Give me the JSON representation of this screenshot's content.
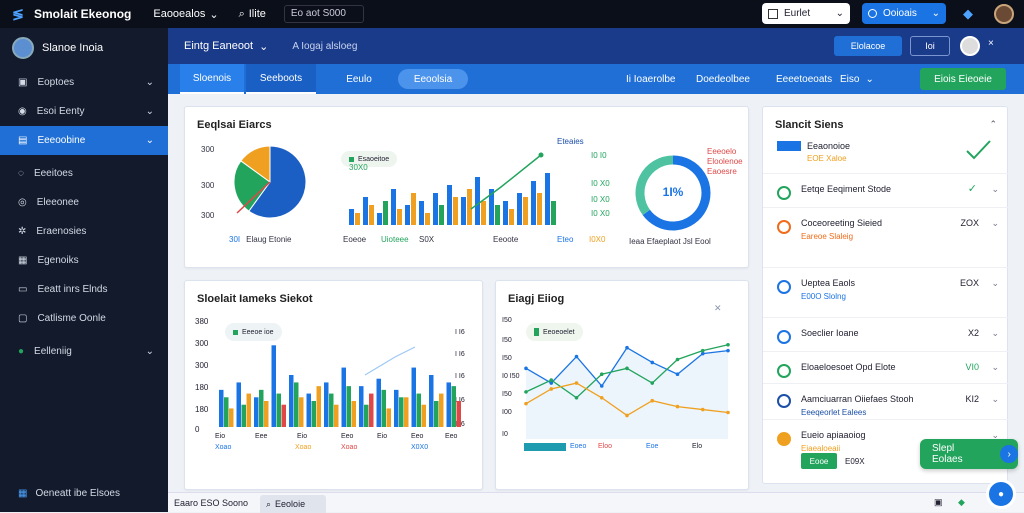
{
  "topbar": {
    "app_title": "Smolait Ekeonog",
    "nav_label": "Eaooealos",
    "search_label": "Ilite",
    "field_value": "Eo aot S000",
    "white_button": "Eurlet",
    "blue_button": "Ooioais",
    "colors": {
      "bg": "#0b0f19",
      "accent": "#1b74e4"
    }
  },
  "sidebar": {
    "user_name": "Slanoe Inoia",
    "items": [
      {
        "label": "Eoptoes",
        "icon": "box-icon",
        "chevron": true,
        "active": false
      },
      {
        "label": "Esoi Eenty",
        "icon": "user-icon",
        "chevron": true,
        "active": false
      },
      {
        "label": "Eeeoobine",
        "icon": "chart-icon",
        "chevron": true,
        "active": true
      },
      {
        "label": "Eeeitoes",
        "icon": "circle-icon",
        "chevron": false,
        "active": false
      },
      {
        "label": "Eleeonee",
        "icon": "eye-icon",
        "chevron": false,
        "active": false
      },
      {
        "label": "Eraenosies",
        "icon": "gear-icon",
        "chevron": false,
        "active": false
      },
      {
        "label": "Egenoiks",
        "icon": "grid-icon",
        "chevron": false,
        "active": false
      },
      {
        "label": "Eeatt inrs Elnds",
        "icon": "monitor-icon",
        "chevron": false,
        "active": false
      },
      {
        "label": "Catlisme Oonle",
        "icon": "window-icon",
        "chevron": false,
        "active": false
      },
      {
        "label": "Eelleniig",
        "icon": "green-dot-icon",
        "chevron": true,
        "active": false
      }
    ],
    "footer": "Oeneatt ibe Elsoes"
  },
  "header": {
    "title": "Eintg Eaneoot",
    "breadcrumb": "A Iogaj alsloeg",
    "action_button": "Elolacoe",
    "icon_button": "Ioi"
  },
  "tabs": {
    "items": [
      "Sloenois",
      "Seeboots",
      "Eeulo",
      "Eeoolsia"
    ],
    "right_items": [
      "Ii Ioaerolbe",
      "Doedeolbee",
      "Eeeetoeoats",
      "Eiso"
    ],
    "cta": "Eiois Eieoeie"
  },
  "card_top": {
    "title": "Eeqlsai Eiarcs",
    "pie": {
      "y_ticks": [
        "300",
        "300",
        "300"
      ],
      "legend": "Elaug Etonie",
      "legend_prefix": "30I"
    },
    "bars": {
      "legend": "Esaoeitoe",
      "legend_value": "30X0",
      "labels": [
        "Eoeoe",
        "Uioteee",
        "S0X",
        "Eeoote"
      ],
      "right_label": "Eteaies",
      "right_ticks": [
        "I0 I0",
        "I0 X0",
        "I0 X0",
        "I0 X0"
      ],
      "right_bottom": [
        "Eteo",
        "I0X0"
      ]
    },
    "donut": {
      "value": "1I%",
      "legend": [
        "Eeeoelo",
        "Eloolenoe",
        "Eaoesre"
      ],
      "caption": "Ieaa Efaeplaot Jsl Eool"
    }
  },
  "card_bl": {
    "title": "Sloelait Iameks Siekot",
    "legend": "Eeeoe ioe",
    "y_ticks": [
      "380",
      "300",
      "300",
      "180",
      "180",
      "0"
    ],
    "right_ticks": [
      "I I6",
      "I I6",
      "I I6",
      "I I6",
      "I I6"
    ],
    "x_labels": [
      "Eio",
      "Eee",
      "Eio",
      "Eeo",
      "Eio",
      "Eeo",
      "Eeo"
    ],
    "x_sublabels": [
      "Xoao",
      "Xoao",
      "Xoao",
      "X0X0"
    ]
  },
  "card_br": {
    "title": "Eiagj Eiiog",
    "legend": "Eeoeoelet",
    "y_ticks": [
      "I50",
      "I50",
      "I50",
      "I0 I50",
      "I50",
      "I00",
      "I0"
    ],
    "x_labels": [
      "Eoeo",
      "Eloo",
      "Eoe",
      "Elo"
    ]
  },
  "panel": {
    "title": "Slancit Siens",
    "header_label": "Eeaonoioe",
    "header_sub": "EOE Xaloe",
    "rows": [
      {
        "label": "Eetqe Eeqiment Stode",
        "sub": "",
        "value": "",
        "icon": "check-circle-icon",
        "color": "#22a45d"
      },
      {
        "label": "Coceoreeting Sieied",
        "sub": "Eareoe Slaleig",
        "value": "ZOX",
        "icon": "warning-icon",
        "color": "#ef6c1a"
      },
      {
        "label": "Ueptea Eaols",
        "sub": "E00O Slolng",
        "value": "EOX",
        "icon": "info-icon",
        "color": "#1b74e4"
      },
      {
        "label": "Soeclier Ioane",
        "sub": "",
        "value": "X2",
        "icon": "clock-icon",
        "color": "#1b74e4"
      },
      {
        "label": "Eloaeloesoet Opd Elote",
        "sub": "",
        "value": "VI0",
        "icon": "check-icon",
        "color": "#22a45d"
      },
      {
        "label": "Aamciuarran Oiiefaes Stooh",
        "sub": "Eeeqeorlet Ealees",
        "value": "KI2",
        "icon": "link-icon",
        "color": "#1b4fa8"
      },
      {
        "label": "Eueio apiaaoiog",
        "sub": "Eiaealoeaii",
        "value": "",
        "icon": "coin-icon",
        "color": "#f0a020"
      }
    ],
    "badge": "Eooe",
    "badge_value": "E09X"
  },
  "float_button": "Slepl Eolaes",
  "bottom": {
    "left": "Eaaro ESO Soono",
    "tab": "Eeoloie"
  },
  "chart_data": [
    {
      "type": "pie",
      "values": [
        60,
        25,
        15
      ],
      "colors": [
        "#1b5fc4",
        "#22a45d",
        "#f0a020"
      ]
    },
    {
      "type": "bar",
      "series": [
        {
          "values": [
            4,
            7,
            3,
            9,
            5,
            6,
            8,
            10,
            7,
            12,
            9,
            6,
            8,
            11,
            13
          ]
        },
        {
          "values": [
            3,
            5,
            6,
            4,
            8,
            3,
            5,
            7,
            9,
            6,
            5,
            4,
            7,
            8,
            6
          ]
        }
      ],
      "ylim": [
        0,
        16
      ]
    },
    {
      "type": "pie",
      "values": [
        65,
        35
      ],
      "colors": [
        "#1b74e4",
        "#4fc3a1"
      ]
    },
    {
      "type": "bar",
      "series": [
        {
          "values": [
            10,
            12,
            8,
            22,
            14,
            9,
            12,
            16,
            11,
            13,
            10,
            16,
            14,
            12
          ]
        },
        {
          "values": [
            8,
            6,
            10,
            9,
            12,
            7,
            9,
            11,
            6,
            10,
            8,
            9,
            7,
            11
          ]
        },
        {
          "values": [
            5,
            9,
            7,
            6,
            8,
            11,
            6,
            7,
            9,
            5,
            8,
            6,
            9,
            7
          ]
        }
      ],
      "ylim": [
        0,
        28
      ]
    },
    {
      "type": "line",
      "series": [
        {
          "values": [
            120,
            95,
            140,
            90,
            155,
            130,
            110,
            145,
            150
          ]
        },
        {
          "values": [
            80,
            100,
            70,
            110,
            120,
            95,
            135,
            150,
            160
          ]
        },
        {
          "values": [
            60,
            85,
            95,
            70,
            40,
            65,
            55,
            50,
            45
          ]
        }
      ],
      "ylim": [
        0,
        180
      ]
    }
  ]
}
